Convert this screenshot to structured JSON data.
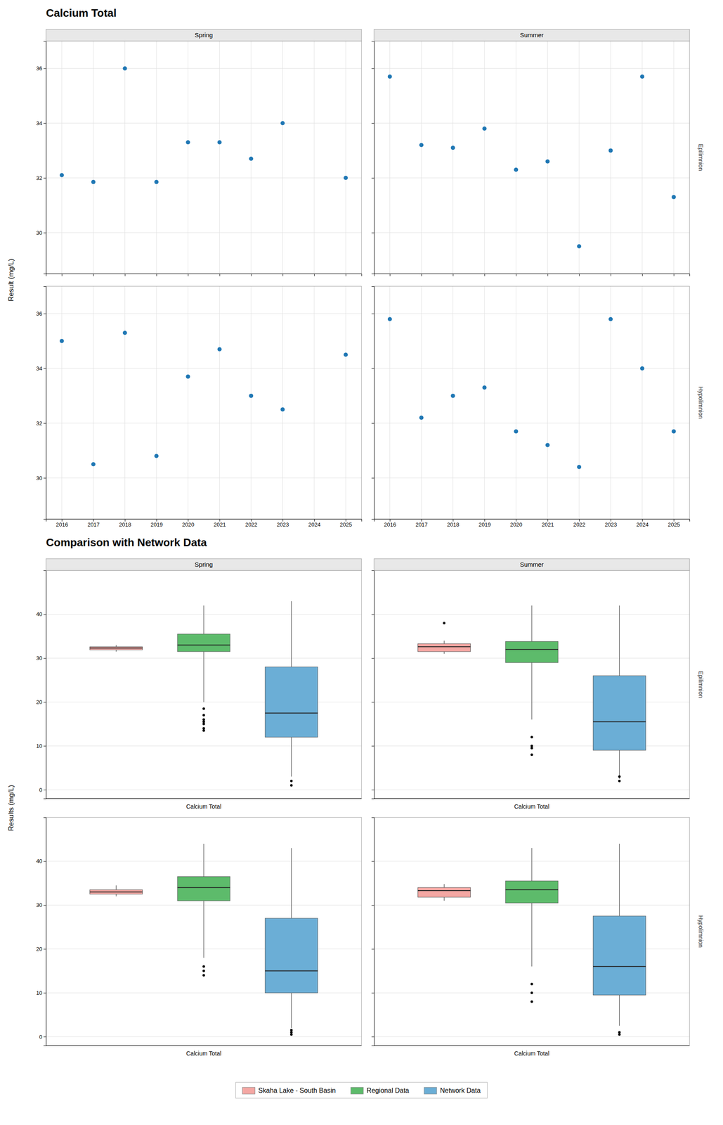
{
  "chart_data": [
    {
      "type": "scatter",
      "title": "Calcium Total",
      "ylabel": "Result (mg/L)",
      "columns": [
        "Spring",
        "Summer"
      ],
      "rows": [
        "Epilimnion",
        "Hypolimnion"
      ],
      "xlim": [
        2015.5,
        2025.5
      ],
      "xticks": [
        2016,
        2017,
        2018,
        2019,
        2020,
        2021,
        2022,
        2023,
        2024,
        2025
      ],
      "ylim": [
        28.5,
        37.0
      ],
      "yticks": [
        30,
        32,
        34,
        36
      ],
      "grid": true,
      "panels": [
        [
          {
            "x": [
              2016,
              2017,
              2018,
              2019,
              2020,
              2021,
              2022,
              2023,
              2025
            ],
            "values": [
              32.1,
              31.85,
              36.0,
              31.85,
              33.3,
              33.3,
              32.7,
              34.0,
              32.0
            ]
          },
          {
            "x": [
              2016,
              2017,
              2018,
              2019,
              2020,
              2021,
              2022,
              2023,
              2025
            ],
            "values": [
              35.0,
              30.5,
              35.3,
              30.8,
              33.7,
              34.7,
              33.0,
              32.5,
              34.5
            ]
          }
        ],
        [
          {
            "x": [
              2016,
              2017,
              2018,
              2019,
              2020,
              2021,
              2022,
              2023,
              2024,
              2025
            ],
            "values": [
              35.7,
              33.2,
              33.1,
              33.8,
              32.3,
              32.6,
              29.5,
              33.0,
              35.7,
              31.3
            ]
          },
          {
            "x": [
              2016,
              2017,
              2018,
              2019,
              2020,
              2021,
              2022,
              2023,
              2024,
              2025
            ],
            "values": [
              35.8,
              32.2,
              33.0,
              33.3,
              31.7,
              31.2,
              30.4,
              35.8,
              34.0,
              31.7
            ]
          }
        ]
      ]
    },
    {
      "type": "box",
      "title": "Comparison with Network Data",
      "ylabel": "Results (mg/L)",
      "xlabel": "Calcium Total",
      "columns": [
        "Spring",
        "Summer"
      ],
      "rows": [
        "Epilimnion",
        "Hypolimnion"
      ],
      "ylim": [
        -2,
        50
      ],
      "yticks": [
        0,
        10,
        20,
        30,
        40
      ],
      "grid": true,
      "series": [
        {
          "name": "Skaha Lake - South Basin",
          "color": "#F4A7A3"
        },
        {
          "name": "Regional Data",
          "color": "#5DBB6B"
        },
        {
          "name": "Network Data",
          "color": "#6BAED6"
        }
      ],
      "panels": [
        [
          [
            {
              "median": 32.3,
              "q1": 31.9,
              "q3": 32.6,
              "whislo": 31.5,
              "whishi": 33.0,
              "fliers": []
            },
            {
              "median": 33.0,
              "q1": 31.5,
              "q3": 35.5,
              "whislo": 20.0,
              "whishi": 42.0,
              "fliers": [
                15.0,
                14.0,
                13.5,
                18.5,
                16.0,
                17.0,
                15.5
              ]
            },
            {
              "median": 17.5,
              "q1": 12.0,
              "q3": 28.0,
              "whislo": 3.0,
              "whishi": 43.0,
              "fliers": [
                1.0,
                2.0
              ]
            }
          ],
          [
            {
              "median": 33.0,
              "q1": 32.5,
              "q3": 33.5,
              "whislo": 32.0,
              "whishi": 34.5,
              "fliers": []
            },
            {
              "median": 34.0,
              "q1": 31.0,
              "q3": 36.5,
              "whislo": 18.0,
              "whishi": 44.0,
              "fliers": [
                15.0,
                14.0,
                16.0
              ]
            },
            {
              "median": 15.0,
              "q1": 10.0,
              "q3": 27.0,
              "whislo": 2.0,
              "whishi": 43.0,
              "fliers": [
                0.5,
                1.0,
                1.5
              ]
            }
          ]
        ],
        [
          [
            {
              "median": 32.6,
              "q1": 31.5,
              "q3": 33.3,
              "whislo": 31.0,
              "whishi": 34.0,
              "fliers": [
                38.0
              ]
            },
            {
              "median": 32.0,
              "q1": 29.0,
              "q3": 33.8,
              "whislo": 16.0,
              "whishi": 42.0,
              "fliers": [
                10.0,
                8.0,
                9.5,
                12.0
              ]
            },
            {
              "median": 15.5,
              "q1": 9.0,
              "q3": 26.0,
              "whislo": 2.5,
              "whishi": 42.0,
              "fliers": [
                3.0,
                2.0
              ]
            }
          ],
          [
            {
              "median": 33.3,
              "q1": 31.8,
              "q3": 34.0,
              "whislo": 31.0,
              "whishi": 34.8,
              "fliers": []
            },
            {
              "median": 33.5,
              "q1": 30.5,
              "q3": 35.5,
              "whislo": 16.0,
              "whishi": 43.0,
              "fliers": [
                8.0,
                10.0,
                12.0
              ]
            },
            {
              "median": 16.0,
              "q1": 9.5,
              "q3": 27.5,
              "whislo": 2.5,
              "whishi": 44.0,
              "fliers": [
                1.0,
                0.5
              ]
            }
          ]
        ]
      ]
    }
  ]
}
